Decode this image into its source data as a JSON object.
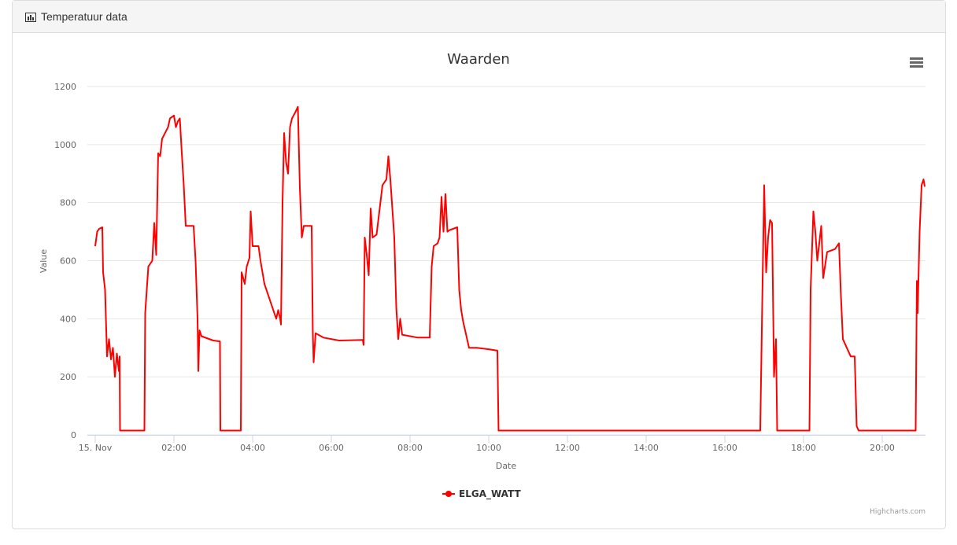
{
  "panel": {
    "title": "Temperatuur data"
  },
  "chart_data": {
    "type": "line",
    "title": "Waarden",
    "xlabel": "Date",
    "ylabel": "Value",
    "credits": "Highcharts.com",
    "xlim": [
      0,
      21.1
    ],
    "ylim": [
      0,
      1200
    ],
    "xticks": [
      {
        "value": 0,
        "label": "15. Nov"
      },
      {
        "value": 2,
        "label": "02:00"
      },
      {
        "value": 4,
        "label": "04:00"
      },
      {
        "value": 6,
        "label": "06:00"
      },
      {
        "value": 8,
        "label": "08:00"
      },
      {
        "value": 10,
        "label": "10:00"
      },
      {
        "value": 12,
        "label": "12:00"
      },
      {
        "value": 14,
        "label": "14:00"
      },
      {
        "value": 16,
        "label": "16:00"
      },
      {
        "value": 18,
        "label": "18:00"
      },
      {
        "value": 20,
        "label": "20:00"
      }
    ],
    "yticks": [
      0,
      200,
      400,
      600,
      800,
      1000,
      1200
    ],
    "grid": true,
    "x": [
      0.0,
      0.05,
      0.1,
      0.18,
      0.2,
      0.25,
      0.3,
      0.35,
      0.4,
      0.45,
      0.5,
      0.55,
      0.6,
      0.62,
      0.63,
      1.25,
      1.27,
      1.3,
      1.35,
      1.45,
      1.5,
      1.55,
      1.6,
      1.65,
      1.7,
      1.85,
      1.9,
      2.0,
      2.05,
      2.1,
      2.15,
      2.2,
      2.25,
      2.3,
      2.5,
      2.55,
      2.6,
      2.62,
      2.65,
      2.7,
      3.0,
      3.17,
      3.18,
      3.7,
      3.72,
      3.8,
      3.85,
      3.92,
      3.95,
      4.0,
      4.15,
      4.2,
      4.3,
      4.4,
      4.5,
      4.6,
      4.65,
      4.7,
      4.72,
      4.76,
      4.8,
      4.85,
      4.9,
      4.95,
      5.0,
      5.08,
      5.15,
      5.2,
      5.25,
      5.3,
      5.5,
      5.53,
      5.55,
      5.6,
      5.8,
      6.2,
      6.8,
      6.82,
      6.85,
      6.9,
      6.95,
      7.0,
      7.05,
      7.15,
      7.3,
      7.4,
      7.45,
      7.5,
      7.6,
      7.65,
      7.7,
      7.75,
      7.8,
      8.0,
      8.2,
      8.5,
      8.55,
      8.6,
      8.7,
      8.75,
      8.8,
      8.85,
      8.9,
      8.95,
      9.0,
      9.2,
      9.25,
      9.3,
      9.35,
      9.45,
      9.5,
      9.7,
      10.0,
      10.22,
      10.25,
      16.9,
      16.95,
      17.0,
      17.05,
      17.1,
      17.15,
      17.2,
      17.25,
      17.3,
      17.33,
      18.15,
      18.18,
      18.25,
      18.3,
      18.35,
      18.45,
      18.5,
      18.6,
      18.8,
      18.9,
      18.95,
      19.0,
      19.1,
      19.2,
      19.3,
      19.35,
      19.4,
      20.85,
      20.88,
      20.9,
      20.95,
      21.0,
      21.05,
      21.08
    ],
    "series": [
      {
        "name": "ELGA_WATT",
        "color": "#ff0000",
        "values": [
          650,
          700,
          710,
          715,
          560,
          500,
          270,
          330,
          260,
          300,
          200,
          280,
          220,
          270,
          15,
          15,
          420,
          480,
          580,
          600,
          730,
          620,
          970,
          960,
          1020,
          1060,
          1090,
          1100,
          1060,
          1080,
          1090,
          970,
          860,
          720,
          720,
          600,
          400,
          220,
          360,
          340,
          325,
          322,
          15,
          15,
          560,
          520,
          580,
          610,
          770,
          650,
          650,
          600,
          520,
          480,
          440,
          400,
          430,
          400,
          380,
          800,
          1040,
          940,
          900,
          1060,
          1090,
          1110,
          1130,
          850,
          680,
          720,
          720,
          350,
          250,
          350,
          335,
          325,
          327,
          310,
          680,
          620,
          550,
          780,
          680,
          690,
          860,
          880,
          960,
          880,
          680,
          440,
          330,
          400,
          345,
          340,
          335,
          335,
          580,
          650,
          660,
          680,
          820,
          700,
          830,
          700,
          705,
          715,
          500,
          430,
          390,
          330,
          300,
          300,
          295,
          290,
          15,
          15,
          450,
          860,
          560,
          680,
          740,
          730,
          200,
          330,
          15,
          15,
          500,
          770,
          700,
          600,
          720,
          540,
          630,
          640,
          660,
          480,
          330,
          300,
          270,
          270,
          30,
          15,
          15,
          530,
          420,
          700,
          860,
          880,
          855
        ]
      }
    ]
  }
}
